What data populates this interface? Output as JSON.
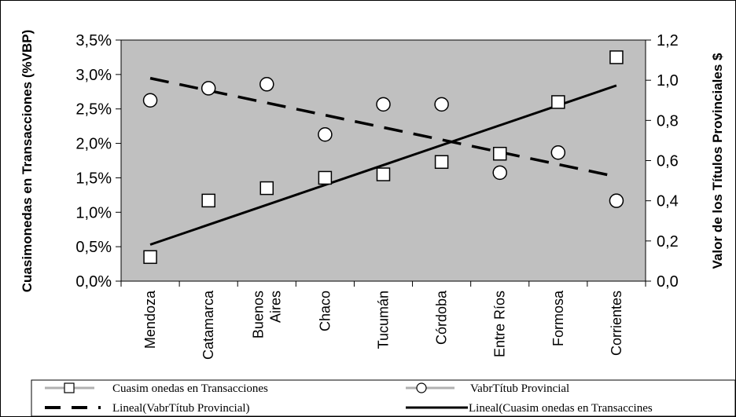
{
  "chart_data": {
    "type": "scatter",
    "title": "",
    "categories": [
      "Mendoza",
      "Catamarca",
      "Buenos Aires",
      "Chaco",
      "Tucumán",
      "Córdoba",
      "Entre Ríos",
      "Formosa",
      "Corrientes"
    ],
    "category_lines": [
      [
        "Mendoza"
      ],
      [
        "Catamarca"
      ],
      [
        "Buenos",
        "Aires"
      ],
      [
        "Chaco"
      ],
      [
        "Tucumán"
      ],
      [
        "Córdoba"
      ],
      [
        "Entre Ríos"
      ],
      [
        "Formosa"
      ],
      [
        "Corrientes"
      ]
    ],
    "ylabel_left": "Cuasimonedas en Transacciones (%VBP)",
    "ylabel_right": "Valor de los Títulos Provinciales $",
    "ylim_left": [
      0,
      0.035
    ],
    "ylim_right": [
      0,
      1.2
    ],
    "yticks_left": [
      "0,0%",
      "0,5%",
      "1,0%",
      "1,5%",
      "2,0%",
      "2,5%",
      "3,0%",
      "3,5%"
    ],
    "yticks_right": [
      "0,0",
      "0,2",
      "0,4",
      "0,6",
      "0,8",
      "1,0",
      "1,2"
    ],
    "series": [
      {
        "name": "Cuasimonedas en Transacciones",
        "axis": "left",
        "marker": "square",
        "values": [
          0.0035,
          0.0117,
          0.0135,
          0.015,
          0.0155,
          0.0173,
          0.0185,
          0.026,
          0.0325
        ]
      },
      {
        "name": "Valor Títulos Provincial",
        "axis": "right",
        "marker": "circle",
        "values": [
          0.9,
          0.96,
          0.98,
          0.73,
          0.88,
          0.88,
          0.54,
          0.64,
          0.4
        ]
      }
    ],
    "trendlines": [
      {
        "name": "Lineal (Valor Títulos Provincial)",
        "axis": "right",
        "style": "dashed",
        "start": 1.01,
        "end": 0.52
      },
      {
        "name": "Lineal (Cuasimonedas en Transacciones)",
        "axis": "left",
        "style": "solid",
        "start": 0.0053,
        "end": 0.0284
      }
    ],
    "legend": {
      "placement": "bottom",
      "entries": [
        "Cuasim onedas en Transacciones",
        "VabrTítub Provincial",
        "Lineal(VabrTítub Provincial)",
        "Lineal(Cuasim onedas en Transaccines"
      ]
    },
    "grid": false,
    "plot_background": "#c0c0c0"
  }
}
